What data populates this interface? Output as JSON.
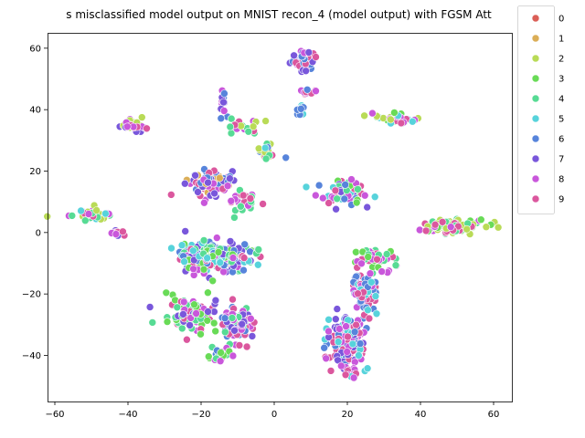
{
  "chart_data": {
    "type": "scatter",
    "title": "s misclassified model output on MNIST recon_4 (model output) with FGSM Att",
    "xlabel": "",
    "ylabel": "",
    "xlim": [
      -62,
      65
    ],
    "ylim": [
      -55,
      65
    ],
    "xticks": [
      -60,
      -40,
      -20,
      0,
      20,
      40,
      60
    ],
    "yticks": [
      -40,
      -20,
      0,
      20,
      40,
      60
    ],
    "grid": false,
    "legend_position": "outside-right-top",
    "legend": [
      {
        "label": "0",
        "color": "#db5f57"
      },
      {
        "label": "1",
        "color": "#dbae57"
      },
      {
        "label": "2",
        "color": "#b9db57"
      },
      {
        "label": "3",
        "color": "#69db57"
      },
      {
        "label": "4",
        "color": "#57db94"
      },
      {
        "label": "5",
        "color": "#57d3db"
      },
      {
        "label": "6",
        "color": "#5784db"
      },
      {
        "label": "7",
        "color": "#7957db"
      },
      {
        "label": "8",
        "color": "#c957db"
      },
      {
        "label": "9",
        "color": "#db579e"
      }
    ],
    "clusters": [
      {
        "x": 8,
        "y": 56,
        "sx": 3,
        "sy": 2.5,
        "n": 55,
        "mix": [
          8,
          7,
          9,
          6
        ]
      },
      {
        "x": 9,
        "y": 46,
        "sx": 1.5,
        "sy": 2,
        "n": 10,
        "mix": [
          9,
          8,
          6
        ]
      },
      {
        "x": 7,
        "y": 39,
        "sx": 1.2,
        "sy": 2,
        "n": 10,
        "mix": [
          6,
          5,
          9
        ]
      },
      {
        "x": -14,
        "y": 43,
        "sx": 1,
        "sy": 4,
        "n": 14,
        "mix": [
          8,
          7,
          9,
          6
        ]
      },
      {
        "x": -8,
        "y": 34,
        "sx": 4,
        "sy": 2,
        "n": 18,
        "mix": [
          9,
          2,
          4,
          8
        ]
      },
      {
        "x": -2,
        "y": 27,
        "sx": 3,
        "sy": 4,
        "n": 18,
        "mix": [
          4,
          5,
          9,
          6,
          2
        ]
      },
      {
        "x": 33,
        "y": 37,
        "sx": 4,
        "sy": 1.5,
        "n": 40,
        "mix": [
          8,
          3,
          2,
          5,
          9
        ]
      },
      {
        "x": -38,
        "y": 35,
        "sx": 3,
        "sy": 1.5,
        "n": 30,
        "mix": [
          8,
          7,
          9,
          2
        ]
      },
      {
        "x": -18,
        "y": 16,
        "sx": 5,
        "sy": 4,
        "n": 90,
        "mix": [
          9,
          8,
          7,
          6,
          1
        ]
      },
      {
        "x": -9,
        "y": 10,
        "sx": 3,
        "sy": 3,
        "n": 30,
        "mix": [
          9,
          8,
          4
        ]
      },
      {
        "x": 19,
        "y": 13,
        "sx": 6,
        "sy": 3,
        "n": 80,
        "mix": [
          5,
          6,
          7,
          8,
          9,
          4,
          3
        ]
      },
      {
        "x": -50,
        "y": 6,
        "sx": 5,
        "sy": 1.5,
        "n": 40,
        "mix": [
          8,
          9,
          5,
          2,
          4
        ]
      },
      {
        "x": -43,
        "y": 0,
        "sx": 2,
        "sy": 1.5,
        "n": 14,
        "mix": [
          8,
          9,
          7
        ]
      },
      {
        "x": 48,
        "y": 2,
        "sx": 8,
        "sy": 2,
        "n": 90,
        "mix": [
          8,
          3,
          9,
          2,
          4
        ]
      },
      {
        "x": 27,
        "y": -8,
        "sx": 5,
        "sy": 3,
        "n": 45,
        "mix": [
          3,
          8,
          9,
          4
        ]
      },
      {
        "x": -16,
        "y": -8,
        "sx": 9,
        "sy": 4,
        "n": 200,
        "mix": [
          4,
          3,
          7,
          8,
          5,
          9,
          6
        ]
      },
      {
        "x": -22,
        "y": -27,
        "sx": 6,
        "sy": 5,
        "n": 90,
        "mix": [
          3,
          4,
          8,
          9,
          7
        ]
      },
      {
        "x": -10,
        "y": -30,
        "sx": 4,
        "sy": 5,
        "n": 70,
        "mix": [
          8,
          7,
          6,
          4,
          9
        ]
      },
      {
        "x": -15,
        "y": -40,
        "sx": 3,
        "sy": 2,
        "n": 25,
        "mix": [
          8,
          3,
          4,
          6
        ]
      },
      {
        "x": 20,
        "y": -35,
        "sx": 4,
        "sy": 7,
        "n": 160,
        "mix": [
          8,
          9,
          5,
          6,
          7
        ]
      },
      {
        "x": 25,
        "y": -20,
        "sx": 3,
        "sy": 5,
        "n": 60,
        "mix": [
          9,
          5,
          8,
          6
        ]
      },
      {
        "x": 21,
        "y": -46,
        "sx": 3,
        "sy": 1.5,
        "n": 20,
        "mix": [
          8,
          5,
          9
        ]
      }
    ]
  }
}
